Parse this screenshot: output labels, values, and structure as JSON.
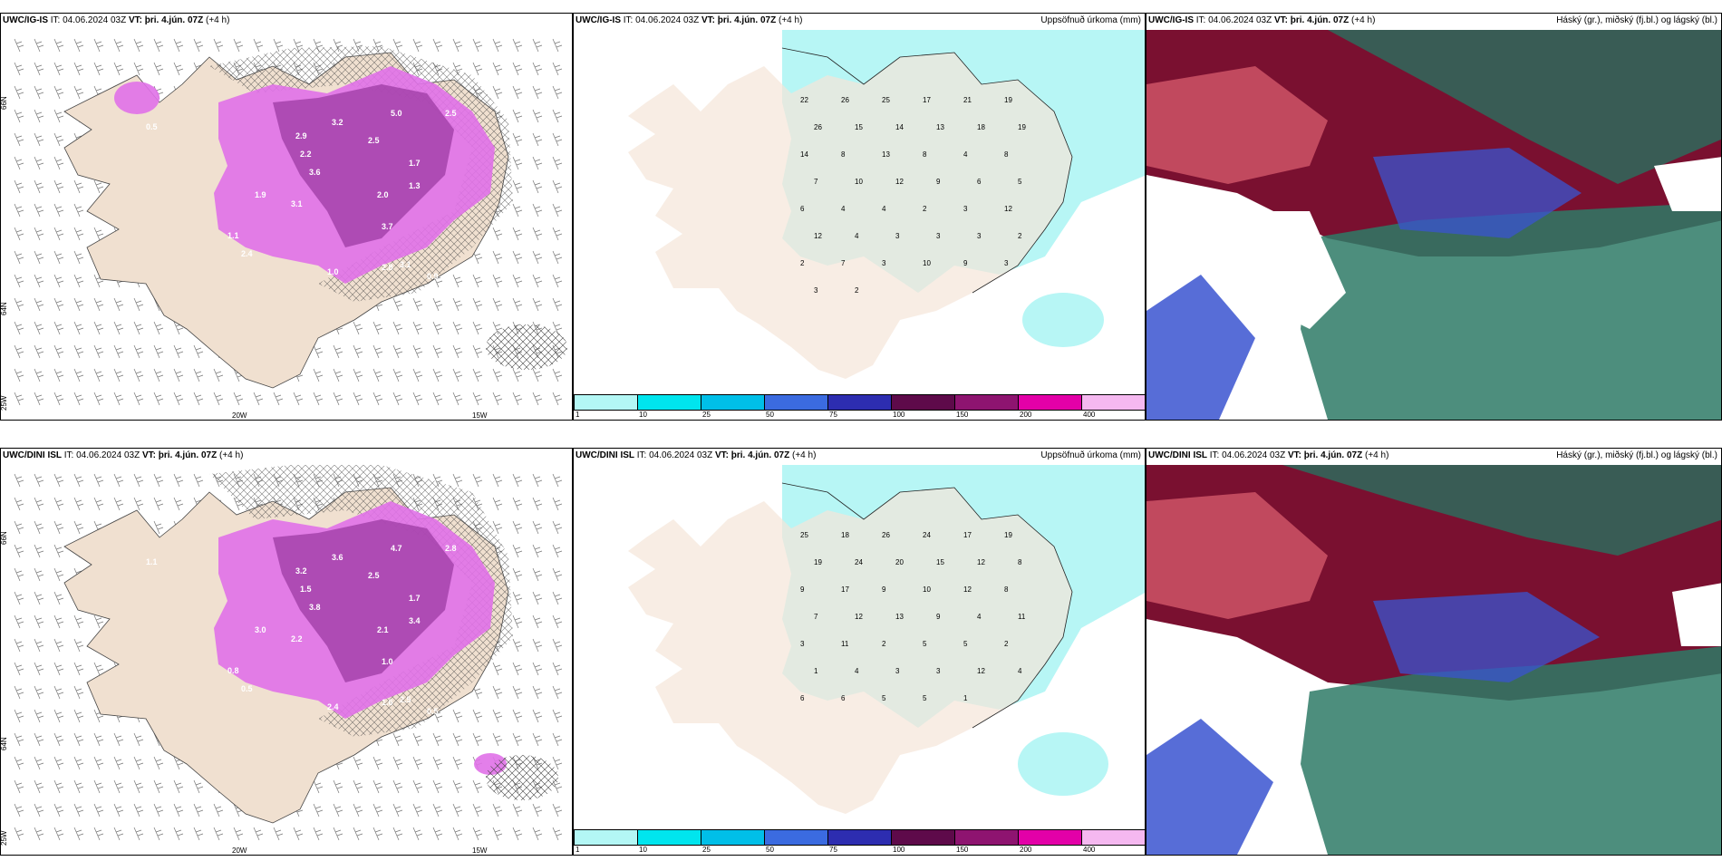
{
  "panels": [
    {
      "model": "UWC/IG-IS",
      "it": "IT: 04.06.2024 03Z",
      "vt": "VT: þri. 4.jún. 07Z",
      "lead": "(+4 h)",
      "right": ""
    },
    {
      "model": "UWC/IG-IS",
      "it": "IT: 04.06.2024 03Z",
      "vt": "VT: þri. 4.jún. 07Z",
      "lead": "(+4 h)",
      "right": "Uppsöfnuð úrkoma (mm)"
    },
    {
      "model": "UWC/IG-IS",
      "it": "IT: 04.06.2024 03Z",
      "vt": "VT: þri. 4.jún. 07Z",
      "lead": "(+4 h)",
      "right": "Háský (gr.), miðský (fj.bl.) og lágský (bl.)"
    },
    {
      "model": "UWC/DINI ISL",
      "it": "IT: 04.06.2024 03Z",
      "vt": "VT: þri. 4.jún. 07Z",
      "lead": "(+4 h)",
      "right": ""
    },
    {
      "model": "UWC/DINI ISL",
      "it": "IT: 04.06.2024 03Z",
      "vt": "VT: þri. 4.jún. 07Z",
      "lead": "(+4 h)",
      "right": "Uppsöfnuð úrkoma (mm)"
    },
    {
      "model": "UWC/DINI ISL",
      "it": "IT: 04.06.2024 03Z",
      "vt": "VT: þri. 4.jún. 07Z",
      "lead": "(+4 h)",
      "right": "Háský (gr.), miðský (fj.bl.) og lágský (bl.)"
    }
  ],
  "axes": {
    "lat66": "66N",
    "lat64": "64N",
    "lon25": "25W",
    "lon20": "20W",
    "lon15": "15W"
  },
  "colorbar": {
    "ticks": [
      "1",
      "10",
      "25",
      "50",
      "75",
      "100",
      "150",
      "200",
      "400"
    ],
    "colors": [
      "#b3f7f5",
      "#00e5ee",
      "#00bfe8",
      "#3b6be0",
      "#2d2db0",
      "#5e0a4a",
      "#8e1470",
      "#e300a8",
      "#f5b8f0"
    ]
  },
  "colors": {
    "land": "#f5e6d8",
    "precip": "#b7f6f5",
    "magenta": "#e05ae8",
    "darkmag": "#8a2a8e",
    "high": "#7a1030",
    "mid": "#3a54d0",
    "low": "#2e7a66"
  },
  "precip_labels_top": [
    "22",
    "26",
    "25",
    "17",
    "21",
    "19",
    "26",
    "15",
    "14",
    "13",
    "18",
    "19",
    "14",
    "8",
    "13",
    "8",
    "4",
    "8",
    "7",
    "10",
    "12",
    "9",
    "6",
    "5",
    "6",
    "4",
    "4",
    "2",
    "3",
    "12",
    "12",
    "4",
    "3",
    "3",
    "3",
    "2",
    "2",
    "7",
    "3",
    "10",
    "9",
    "3",
    "3",
    "2"
  ],
  "precip_labels_bottom": [
    "25",
    "18",
    "26",
    "24",
    "17",
    "19",
    "19",
    "24",
    "20",
    "15",
    "12",
    "8",
    "9",
    "17",
    "9",
    "10",
    "12",
    "8",
    "7",
    "12",
    "13",
    "9",
    "4",
    "11",
    "3",
    "11",
    "2",
    "5",
    "5",
    "2",
    "1",
    "4",
    "3",
    "3",
    "12",
    "4",
    "6",
    "6",
    "5",
    "5",
    "1"
  ],
  "wind_labels_top": [
    "5.0",
    "2.5",
    "2.9",
    "3.2",
    "2.5",
    "2.2",
    "3.6",
    "1.7",
    "2.0",
    "1.3",
    "3.7",
    "1.9",
    "3.1",
    "1.1",
    "2.4",
    "0.5",
    "1.0",
    "3.1",
    "2.8",
    "0.9"
  ],
  "wind_labels_bottom": [
    "4.7",
    "2.8",
    "3.2",
    "3.6",
    "2.5",
    "1.5",
    "3.8",
    "1.7",
    "2.1",
    "3.4",
    "1.0",
    "3.0",
    "2.2",
    "0.8",
    "0.5",
    "1.1",
    "2.4",
    "2.5",
    "1.6",
    "0.5"
  ]
}
